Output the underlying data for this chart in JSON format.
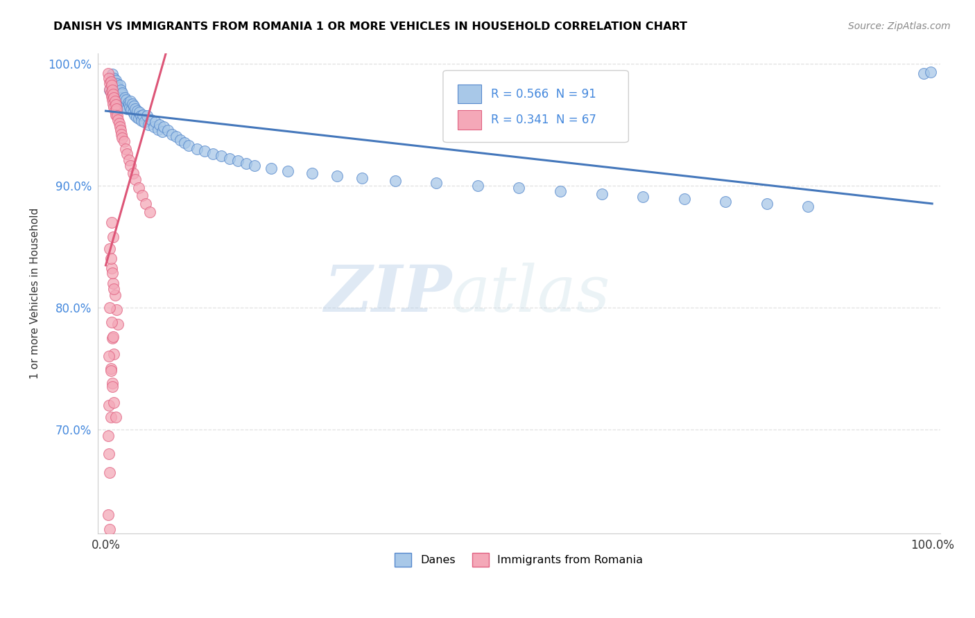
{
  "title": "DANISH VS IMMIGRANTS FROM ROMANIA 1 OR MORE VEHICLES IN HOUSEHOLD CORRELATION CHART",
  "source": "Source: ZipAtlas.com",
  "ylabel": "1 or more Vehicles in Household",
  "xlim": [
    -0.01,
    1.01
  ],
  "ylim": [
    0.615,
    1.008
  ],
  "yticks": [
    0.7,
    0.8,
    0.9,
    1.0
  ],
  "ytick_labels": [
    "70.0%",
    "80.0%",
    "90.0%",
    "100.0%"
  ],
  "xticks": [
    0.0,
    0.1,
    0.2,
    0.3,
    0.4,
    0.5,
    0.6,
    0.7,
    0.8,
    0.9,
    1.0
  ],
  "xtick_labels": [
    "0.0%",
    "",
    "",
    "",
    "",
    "",
    "",
    "",
    "",
    "",
    "100.0%"
  ],
  "legend_labels": [
    "Danes",
    "Immigrants from Romania"
  ],
  "danes_color": "#a8c8e8",
  "romania_color": "#f4a8b8",
  "danes_edge_color": "#5588cc",
  "romania_edge_color": "#e06080",
  "danes_line_color": "#4477bb",
  "romania_line_color": "#dd5577",
  "danes_R": 0.566,
  "danes_N": 91,
  "romania_R": 0.341,
  "romania_N": 67,
  "background_color": "#ffffff",
  "grid_color": "#e0e0e0",
  "watermark_zip": "ZIP",
  "watermark_atlas": "atlas",
  "danes_x": [
    0.005,
    0.007,
    0.008,
    0.009,
    0.01,
    0.01,
    0.011,
    0.011,
    0.012,
    0.012,
    0.013,
    0.013,
    0.014,
    0.014,
    0.015,
    0.015,
    0.016,
    0.016,
    0.017,
    0.017,
    0.018,
    0.018,
    0.019,
    0.019,
    0.02,
    0.02,
    0.021,
    0.022,
    0.023,
    0.024,
    0.025,
    0.026,
    0.027,
    0.028,
    0.029,
    0.03,
    0.031,
    0.032,
    0.033,
    0.034,
    0.035,
    0.036,
    0.037,
    0.038,
    0.04,
    0.041,
    0.042,
    0.043,
    0.045,
    0.047,
    0.05,
    0.052,
    0.055,
    0.058,
    0.06,
    0.063,
    0.065,
    0.068,
    0.07,
    0.075,
    0.08,
    0.085,
    0.09,
    0.095,
    0.1,
    0.11,
    0.12,
    0.13,
    0.14,
    0.15,
    0.16,
    0.17,
    0.18,
    0.2,
    0.22,
    0.25,
    0.28,
    0.31,
    0.35,
    0.4,
    0.45,
    0.5,
    0.55,
    0.6,
    0.65,
    0.7,
    0.75,
    0.8,
    0.85,
    0.99,
    0.998
  ],
  "danes_y": [
    0.978,
    0.985,
    0.991,
    0.982,
    0.976,
    0.988,
    0.972,
    0.984,
    0.979,
    0.986,
    0.975,
    0.981,
    0.974,
    0.983,
    0.973,
    0.98,
    0.971,
    0.977,
    0.97,
    0.982,
    0.969,
    0.978,
    0.975,
    0.972,
    0.968,
    0.976,
    0.97,
    0.967,
    0.972,
    0.965,
    0.97,
    0.963,
    0.968,
    0.966,
    0.964,
    0.969,
    0.962,
    0.967,
    0.96,
    0.965,
    0.958,
    0.963,
    0.956,
    0.961,
    0.955,
    0.96,
    0.957,
    0.953,
    0.958,
    0.952,
    0.957,
    0.95,
    0.954,
    0.948,
    0.952,
    0.946,
    0.95,
    0.944,
    0.948,
    0.945,
    0.942,
    0.94,
    0.937,
    0.935,
    0.933,
    0.93,
    0.928,
    0.926,
    0.924,
    0.922,
    0.92,
    0.918,
    0.916,
    0.914,
    0.912,
    0.91,
    0.908,
    0.906,
    0.904,
    0.902,
    0.9,
    0.898,
    0.895,
    0.893,
    0.891,
    0.889,
    0.887,
    0.885,
    0.883,
    0.992,
    0.993
  ],
  "romania_x": [
    0.003,
    0.004,
    0.005,
    0.005,
    0.006,
    0.006,
    0.007,
    0.007,
    0.008,
    0.008,
    0.009,
    0.009,
    0.01,
    0.01,
    0.011,
    0.011,
    0.012,
    0.012,
    0.013,
    0.014,
    0.015,
    0.016,
    0.017,
    0.018,
    0.019,
    0.02,
    0.022,
    0.024,
    0.026,
    0.028,
    0.03,
    0.033,
    0.036,
    0.04,
    0.044,
    0.048,
    0.053,
    0.005,
    0.007,
    0.009,
    0.011,
    0.013,
    0.015,
    0.008,
    0.01,
    0.006,
    0.008,
    0.004,
    0.006,
    0.003,
    0.004,
    0.005,
    0.007,
    0.009,
    0.006,
    0.008,
    0.01,
    0.005,
    0.007,
    0.009,
    0.004,
    0.006,
    0.008,
    0.01,
    0.012,
    0.003,
    0.005
  ],
  "romania_y": [
    0.992,
    0.988,
    0.984,
    0.979,
    0.985,
    0.976,
    0.982,
    0.973,
    0.978,
    0.97,
    0.975,
    0.967,
    0.972,
    0.964,
    0.969,
    0.961,
    0.966,
    0.958,
    0.963,
    0.957,
    0.954,
    0.951,
    0.948,
    0.945,
    0.942,
    0.939,
    0.936,
    0.93,
    0.926,
    0.921,
    0.916,
    0.91,
    0.905,
    0.898,
    0.892,
    0.885,
    0.878,
    0.848,
    0.832,
    0.82,
    0.81,
    0.798,
    0.786,
    0.775,
    0.762,
    0.75,
    0.738,
    0.72,
    0.71,
    0.695,
    0.68,
    0.665,
    0.87,
    0.858,
    0.84,
    0.828,
    0.815,
    0.8,
    0.788,
    0.776,
    0.76,
    0.748,
    0.735,
    0.722,
    0.71,
    0.63,
    0.618
  ]
}
